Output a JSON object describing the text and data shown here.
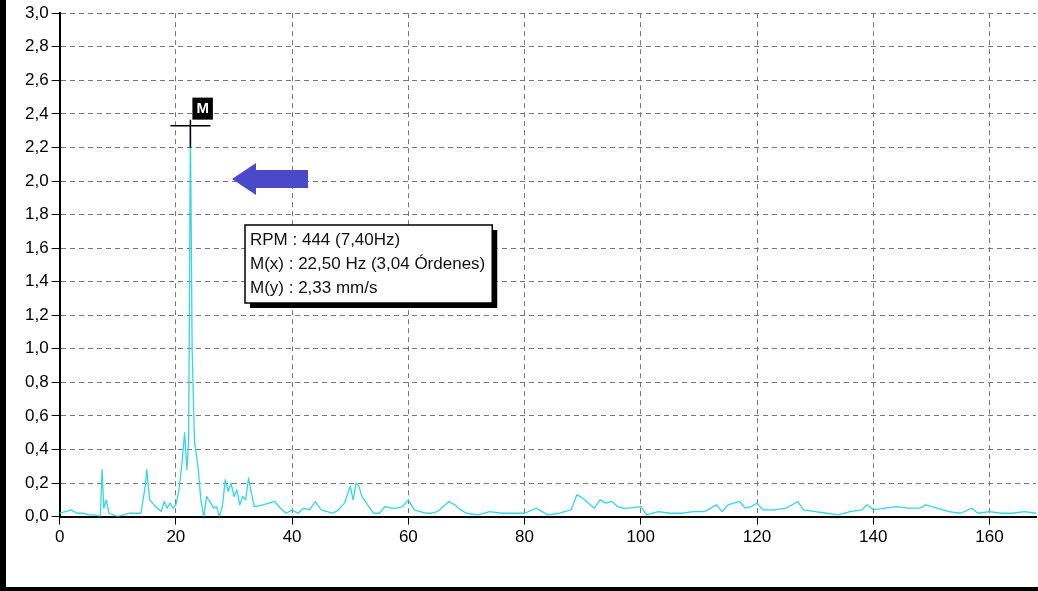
{
  "chart_data": {
    "type": "line",
    "x": [
      0,
      1,
      2,
      3,
      4,
      5,
      6,
      7,
      7.3,
      7.6,
      8,
      8.5,
      10,
      12,
      14,
      14.8,
      15,
      15.5,
      16.5,
      17.5,
      18,
      18.5,
      19,
      19.5,
      20,
      20.5,
      21,
      21.5,
      21.9,
      22.2,
      22.5,
      22.8,
      23.2,
      23.8,
      24.3,
      24.8,
      25.3,
      26,
      26.5,
      27,
      27.5,
      28,
      28.5,
      29,
      29.5,
      30,
      30.5,
      31,
      31.5,
      32,
      32.5,
      33,
      33.5,
      35,
      37,
      38,
      39,
      40,
      41,
      42,
      43,
      44,
      45,
      46,
      47,
      48,
      49,
      50,
      50.5,
      51,
      51.5,
      52,
      53,
      54,
      55,
      56,
      57,
      58,
      59,
      60,
      61,
      62,
      63,
      64,
      65,
      66,
      67,
      68,
      69,
      70,
      72,
      74,
      76,
      78,
      80,
      82,
      84,
      86,
      88,
      89,
      90,
      91,
      92,
      93,
      94,
      95,
      96,
      97,
      98,
      100,
      101,
      103,
      105,
      107,
      109,
      111,
      113,
      114,
      115,
      117,
      118,
      119,
      120,
      121,
      123,
      125,
      127,
      128,
      130,
      132,
      134,
      136,
      138,
      139,
      140,
      142,
      144,
      146,
      148,
      149,
      151,
      153,
      155,
      157,
      158,
      160,
      162,
      164,
      166,
      168
    ],
    "series": [
      {
        "color": "#33d6e8",
        "values": [
          0.02,
          0.03,
          0.04,
          0.02,
          0.02,
          0.01,
          0.01,
          0.0,
          0.28,
          0.05,
          0.1,
          0.02,
          0.0,
          0.02,
          0.02,
          0.2,
          0.28,
          0.1,
          0.06,
          0.03,
          0.09,
          0.05,
          0.08,
          0.05,
          0.07,
          0.15,
          0.3,
          0.5,
          0.28,
          0.45,
          2.33,
          1.0,
          0.45,
          0.3,
          0.1,
          0.0,
          0.12,
          0.08,
          0.05,
          0.06,
          0.0,
          0.06,
          0.22,
          0.15,
          0.2,
          0.12,
          0.16,
          0.07,
          0.12,
          0.1,
          0.23,
          0.14,
          0.06,
          0.07,
          0.09,
          0.05,
          0.02,
          0.04,
          0.02,
          0.05,
          0.04,
          0.09,
          0.04,
          0.03,
          0.02,
          0.04,
          0.08,
          0.18,
          0.1,
          0.2,
          0.18,
          0.12,
          0.07,
          0.02,
          0.02,
          0.06,
          0.05,
          0.05,
          0.06,
          0.1,
          0.04,
          0.03,
          0.02,
          0.02,
          0.03,
          0.06,
          0.09,
          0.07,
          0.04,
          0.02,
          0.01,
          0.03,
          0.02,
          0.02,
          0.02,
          0.05,
          0.01,
          0.02,
          0.04,
          0.13,
          0.11,
          0.08,
          0.05,
          0.1,
          0.08,
          0.09,
          0.06,
          0.05,
          0.05,
          0.06,
          0.01,
          0.03,
          0.02,
          0.02,
          0.03,
          0.03,
          0.07,
          0.03,
          0.07,
          0.09,
          0.05,
          0.06,
          0.08,
          0.04,
          0.04,
          0.05,
          0.09,
          0.04,
          0.03,
          0.02,
          0.01,
          0.03,
          0.04,
          0.07,
          0.04,
          0.05,
          0.06,
          0.05,
          0.05,
          0.07,
          0.05,
          0.03,
          0.02,
          0.05,
          0.02,
          0.03,
          0.02,
          0.02,
          0.03,
          0.02
        ]
      }
    ],
    "xlim": [
      0,
      168
    ],
    "xticks": [
      0,
      20,
      40,
      60,
      80,
      100,
      120,
      140,
      160
    ],
    "ylim": [
      0,
      3.0
    ],
    "yticks": [
      {
        "value": 0,
        "label": "0,0"
      },
      {
        "value": 0.2,
        "label": "0,2"
      },
      {
        "value": 0.4,
        "label": "0,4"
      },
      {
        "value": 0.6,
        "label": "0,6"
      },
      {
        "value": 0.8,
        "label": "0,8"
      },
      {
        "value": 1.0,
        "label": "1,0"
      },
      {
        "value": 1.2,
        "label": "1,2"
      },
      {
        "value": 1.4,
        "label": "1,4"
      },
      {
        "value": 1.6,
        "label": "1,6"
      },
      {
        "value": 1.8,
        "label": "1,8"
      },
      {
        "value": 2.0,
        "label": "2,0"
      },
      {
        "value": 2.2,
        "label": "2,2"
      },
      {
        "value": 2.4,
        "label": "2,4"
      },
      {
        "value": 2.6,
        "label": "2,6"
      },
      {
        "value": 2.8,
        "label": "2,8"
      },
      {
        "value": 3.0,
        "label": "3,0"
      }
    ],
    "grid": true,
    "marker": "none",
    "line_style": "solid",
    "annotations": [
      {
        "text": "M",
        "x": 22.5,
        "y": 2.33
      },
      "RPM : 444 (7,40Hz)",
      "M(x) : 22,50 Hz (3,04 Órdenes)",
      "M(y) : 2,33 mm/s"
    ]
  }
}
